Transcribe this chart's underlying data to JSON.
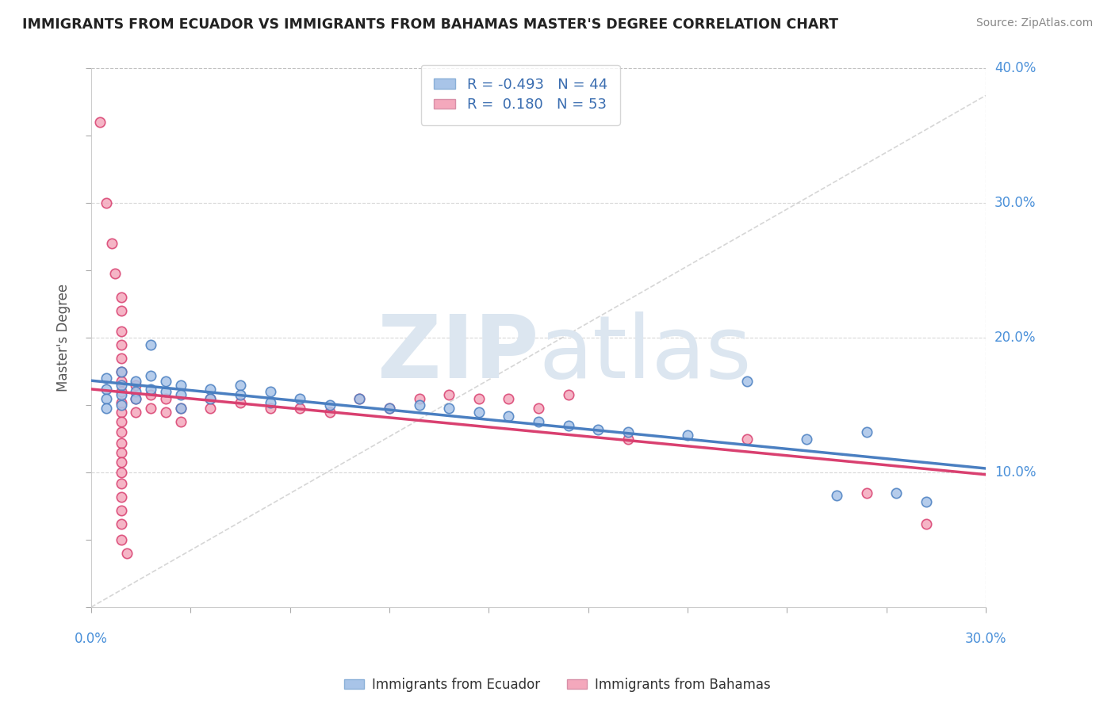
{
  "title": "IMMIGRANTS FROM ECUADOR VS IMMIGRANTS FROM BAHAMAS MASTER'S DEGREE CORRELATION CHART",
  "source": "Source: ZipAtlas.com",
  "ylabel": "Master's Degree",
  "x_min": 0.0,
  "x_max": 0.3,
  "y_min": 0.0,
  "y_max": 0.4,
  "ecuador_color": "#a8c4e8",
  "bahamas_color": "#f4a8bc",
  "ecuador_line_color": "#4a7fc1",
  "bahamas_line_color": "#d94070",
  "r_ecuador": -0.493,
  "n_ecuador": 44,
  "r_bahamas": 0.18,
  "n_bahamas": 53,
  "ecuador_points": [
    [
      0.005,
      0.17
    ],
    [
      0.005,
      0.162
    ],
    [
      0.005,
      0.155
    ],
    [
      0.005,
      0.148
    ],
    [
      0.01,
      0.175
    ],
    [
      0.01,
      0.165
    ],
    [
      0.01,
      0.158
    ],
    [
      0.01,
      0.15
    ],
    [
      0.015,
      0.168
    ],
    [
      0.015,
      0.16
    ],
    [
      0.015,
      0.155
    ],
    [
      0.02,
      0.195
    ],
    [
      0.02,
      0.172
    ],
    [
      0.02,
      0.162
    ],
    [
      0.025,
      0.168
    ],
    [
      0.025,
      0.16
    ],
    [
      0.03,
      0.165
    ],
    [
      0.03,
      0.158
    ],
    [
      0.03,
      0.148
    ],
    [
      0.04,
      0.162
    ],
    [
      0.04,
      0.155
    ],
    [
      0.05,
      0.165
    ],
    [
      0.05,
      0.158
    ],
    [
      0.06,
      0.16
    ],
    [
      0.06,
      0.152
    ],
    [
      0.07,
      0.155
    ],
    [
      0.08,
      0.15
    ],
    [
      0.09,
      0.155
    ],
    [
      0.1,
      0.148
    ],
    [
      0.11,
      0.15
    ],
    [
      0.12,
      0.148
    ],
    [
      0.13,
      0.145
    ],
    [
      0.14,
      0.142
    ],
    [
      0.15,
      0.138
    ],
    [
      0.16,
      0.135
    ],
    [
      0.17,
      0.132
    ],
    [
      0.18,
      0.13
    ],
    [
      0.2,
      0.128
    ],
    [
      0.22,
      0.168
    ],
    [
      0.24,
      0.125
    ],
    [
      0.25,
      0.083
    ],
    [
      0.26,
      0.13
    ],
    [
      0.27,
      0.085
    ],
    [
      0.28,
      0.078
    ]
  ],
  "bahamas_points": [
    [
      0.003,
      0.36
    ],
    [
      0.005,
      0.3
    ],
    [
      0.007,
      0.27
    ],
    [
      0.008,
      0.248
    ],
    [
      0.01,
      0.23
    ],
    [
      0.01,
      0.22
    ],
    [
      0.01,
      0.205
    ],
    [
      0.01,
      0.195
    ],
    [
      0.01,
      0.185
    ],
    [
      0.01,
      0.175
    ],
    [
      0.01,
      0.168
    ],
    [
      0.01,
      0.16
    ],
    [
      0.01,
      0.152
    ],
    [
      0.01,
      0.145
    ],
    [
      0.01,
      0.138
    ],
    [
      0.01,
      0.13
    ],
    [
      0.01,
      0.122
    ],
    [
      0.01,
      0.115
    ],
    [
      0.01,
      0.108
    ],
    [
      0.01,
      0.1
    ],
    [
      0.01,
      0.092
    ],
    [
      0.01,
      0.082
    ],
    [
      0.01,
      0.072
    ],
    [
      0.01,
      0.062
    ],
    [
      0.01,
      0.05
    ],
    [
      0.012,
      0.04
    ],
    [
      0.015,
      0.165
    ],
    [
      0.015,
      0.155
    ],
    [
      0.015,
      0.145
    ],
    [
      0.02,
      0.158
    ],
    [
      0.02,
      0.148
    ],
    [
      0.025,
      0.155
    ],
    [
      0.025,
      0.145
    ],
    [
      0.03,
      0.148
    ],
    [
      0.03,
      0.138
    ],
    [
      0.04,
      0.155
    ],
    [
      0.04,
      0.148
    ],
    [
      0.05,
      0.152
    ],
    [
      0.06,
      0.148
    ],
    [
      0.07,
      0.148
    ],
    [
      0.08,
      0.145
    ],
    [
      0.09,
      0.155
    ],
    [
      0.1,
      0.148
    ],
    [
      0.11,
      0.155
    ],
    [
      0.12,
      0.158
    ],
    [
      0.13,
      0.155
    ],
    [
      0.14,
      0.155
    ],
    [
      0.15,
      0.148
    ],
    [
      0.16,
      0.158
    ],
    [
      0.18,
      0.125
    ],
    [
      0.22,
      0.125
    ],
    [
      0.26,
      0.085
    ],
    [
      0.28,
      0.062
    ]
  ],
  "watermark_color": "#dce6f0",
  "background_color": "#ffffff",
  "title_color": "#222222",
  "axis_label_color": "#4a90d9"
}
